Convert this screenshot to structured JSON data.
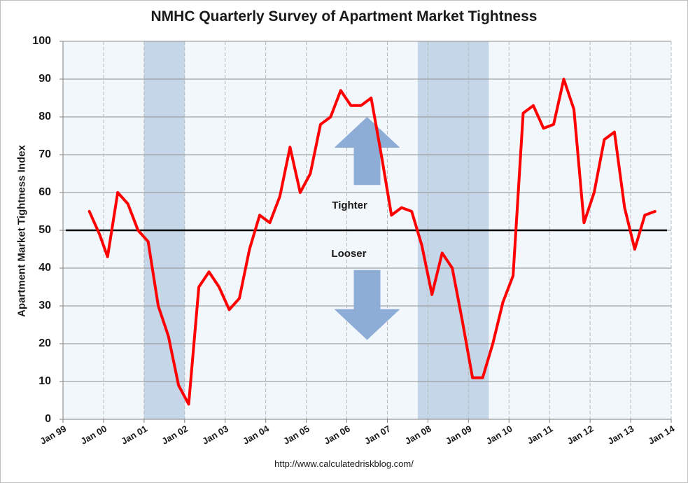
{
  "chart_data": {
    "type": "line",
    "title": "NMHC Quarterly Survey of Apartment Market Tightness",
    "ylabel": "Apartment Market Tightness Index",
    "xlabel": "",
    "source": "http://www.calculatedriskblog.com/",
    "ylim": [
      0,
      100
    ],
    "yticks": [
      0,
      10,
      20,
      30,
      40,
      50,
      60,
      70,
      80,
      90,
      100
    ],
    "xlim": [
      1999,
      2014
    ],
    "xticks": [
      {
        "x": 1999,
        "label": "Jan 99"
      },
      {
        "x": 2000,
        "label": "Jan 00"
      },
      {
        "x": 2001,
        "label": "Jan 01"
      },
      {
        "x": 2002,
        "label": "Jan 02"
      },
      {
        "x": 2003,
        "label": "Jan 03"
      },
      {
        "x": 2004,
        "label": "Jan 04"
      },
      {
        "x": 2005,
        "label": "Jan 05"
      },
      {
        "x": 2006,
        "label": "Jan 06"
      },
      {
        "x": 2007,
        "label": "Jan 07"
      },
      {
        "x": 2008,
        "label": "Jan 08"
      },
      {
        "x": 2009,
        "label": "Jan 09"
      },
      {
        "x": 2010,
        "label": "Jan 10"
      },
      {
        "x": 2011,
        "label": "Jan 11"
      },
      {
        "x": 2012,
        "label": "Jan 12"
      },
      {
        "x": 2013,
        "label": "Jan 13"
      },
      {
        "x": 2014,
        "label": "Jan 14"
      }
    ],
    "grid": true,
    "reference_line": {
      "y": 50,
      "color": "#000000"
    },
    "shaded_ranges": [
      {
        "x0": 2001.0,
        "x1": 2002.0,
        "color": "#c5d6e8"
      },
      {
        "x0": 2007.75,
        "x1": 2009.5,
        "color": "#c5d6e8"
      }
    ],
    "annotations": [
      {
        "text": "Tighter",
        "x": 2006.07,
        "y": 56.5
      },
      {
        "text": "Looser",
        "x": 2006.05,
        "y": 43.7
      }
    ],
    "arrows": [
      {
        "direction": "up",
        "color": "#8eadd6",
        "x": 2006.5,
        "y_tail": 62,
        "y_head": 80
      },
      {
        "direction": "down",
        "color": "#8eadd6",
        "x": 2006.5,
        "y_tail": 39.5,
        "y_head": 21
      }
    ],
    "series": [
      {
        "color": "#ff0000",
        "x": [
          1999.65,
          1999.9,
          2000.1,
          2000.35,
          2000.6,
          2000.85,
          2001.1,
          2001.35,
          2001.6,
          2001.85,
          2002.1,
          2002.35,
          2002.6,
          2002.85,
          2003.1,
          2003.35,
          2003.6,
          2003.85,
          2004.1,
          2004.35,
          2004.6,
          2004.85,
          2005.1,
          2005.35,
          2005.6,
          2005.85,
          2006.1,
          2006.35,
          2006.6,
          2006.85,
          2007.1,
          2007.35,
          2007.6,
          2007.85,
          2008.1,
          2008.35,
          2008.6,
          2008.85,
          2009.1,
          2009.35,
          2009.6,
          2009.85,
          2010.1,
          2010.35,
          2010.6,
          2010.85,
          2011.1,
          2011.35,
          2011.6,
          2011.85,
          2012.1,
          2012.35,
          2012.6,
          2012.85,
          2013.1,
          2013.35,
          2013.6
        ],
        "values": [
          55,
          49,
          43,
          60,
          57,
          50,
          47,
          30,
          22,
          9,
          4,
          35,
          39,
          35,
          29,
          32,
          45,
          54,
          52,
          59,
          72,
          60,
          65,
          78,
          80,
          87,
          83,
          83,
          85,
          70,
          54,
          56,
          55,
          46,
          33,
          44,
          40,
          26,
          11,
          11,
          20,
          31,
          38,
          81,
          83,
          77,
          78,
          90,
          82,
          52,
          60,
          74,
          76,
          56,
          45,
          54,
          55
        ]
      }
    ]
  }
}
